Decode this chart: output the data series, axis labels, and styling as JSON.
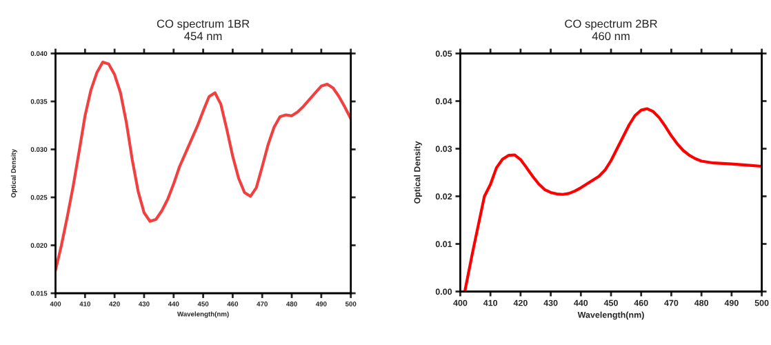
{
  "chart_data": [
    {
      "type": "line",
      "title": "CO spectrum 1BR\n454 nm",
      "xlabel": "Wavelength(nm)",
      "ylabel": "Optical Density",
      "xlim": [
        400,
        500
      ],
      "xticks": [
        400,
        410,
        420,
        430,
        440,
        450,
        460,
        470,
        480,
        490,
        500
      ],
      "ylim": [
        0.015,
        0.04
      ],
      "yticks": [
        {
          "value": 0.015,
          "label": "0.015"
        },
        {
          "value": 0.02,
          "label": "0.020"
        },
        {
          "value": 0.025,
          "label": "0.025"
        },
        {
          "value": 0.03,
          "label": "0.030"
        },
        {
          "value": 0.035,
          "label": "0.035"
        },
        {
          "value": 0.04,
          "label": "0.040"
        }
      ],
      "grid": false,
      "legend": false,
      "series": [
        {
          "color": "#f04040",
          "x": [
            400,
            402,
            404,
            406,
            408,
            410,
            412,
            414,
            416,
            418,
            420,
            422,
            424,
            426,
            428,
            430,
            432,
            434,
            436,
            438,
            440,
            442,
            444,
            446,
            448,
            450,
            452,
            454,
            456,
            458,
            460,
            462,
            464,
            466,
            468,
            470,
            472,
            474,
            476,
            478,
            480,
            482,
            484,
            486,
            488,
            490,
            492,
            494,
            496,
            498,
            500
          ],
          "values": [
            0.0174,
            0.02,
            0.023,
            0.0262,
            0.0298,
            0.0335,
            0.0362,
            0.038,
            0.0391,
            0.0389,
            0.0378,
            0.0359,
            0.0328,
            0.0289,
            0.0256,
            0.0234,
            0.0225,
            0.0227,
            0.0236,
            0.0248,
            0.0264,
            0.0282,
            0.0296,
            0.031,
            0.0324,
            0.034,
            0.0355,
            0.0359,
            0.0347,
            0.0321,
            0.0293,
            0.027,
            0.0255,
            0.0251,
            0.026,
            0.0282,
            0.0305,
            0.0323,
            0.0334,
            0.0336,
            0.0335,
            0.0339,
            0.0345,
            0.0352,
            0.0359,
            0.0366,
            0.0368,
            0.0364,
            0.0355,
            0.0344,
            0.0332
          ]
        }
      ]
    },
    {
      "type": "line",
      "title": "CO spectrum 2BR\n460 nm",
      "xlabel": "Wavelength(nm)",
      "ylabel": "Optical Density",
      "xlim": [
        400,
        500
      ],
      "xticks": [
        400,
        410,
        420,
        430,
        440,
        450,
        460,
        470,
        480,
        490,
        500
      ],
      "ylim": [
        0,
        0.05
      ],
      "yticks": [
        {
          "value": 0,
          "label": "0.00"
        },
        {
          "value": 0.01,
          "label": "0.01"
        },
        {
          "value": 0.02,
          "label": "0.02"
        },
        {
          "value": 0.03,
          "label": "0.03"
        },
        {
          "value": 0.04,
          "label": "0.04"
        },
        {
          "value": 0.05,
          "label": "0.05"
        }
      ],
      "grid": false,
      "legend": false,
      "series": [
        {
          "color": "#ff0000",
          "x": [
            401.5,
            404,
            406,
            408,
            410,
            412,
            414,
            416,
            418,
            420,
            422,
            424,
            426,
            428,
            430,
            432,
            434,
            436,
            438,
            440,
            442,
            444,
            446,
            448,
            450,
            452,
            454,
            456,
            458,
            460,
            462,
            464,
            466,
            468,
            470,
            472,
            474,
            476,
            478,
            480,
            484,
            490,
            496,
            500
          ],
          "values": [
            0.0,
            0.008,
            0.014,
            0.02,
            0.0225,
            0.026,
            0.0278,
            0.0286,
            0.0287,
            0.0277,
            0.026,
            0.0242,
            0.0226,
            0.0214,
            0.0208,
            0.0205,
            0.0204,
            0.0206,
            0.0211,
            0.0218,
            0.0226,
            0.0234,
            0.0242,
            0.0255,
            0.0275,
            0.03,
            0.0325,
            0.035,
            0.037,
            0.0381,
            0.0384,
            0.0378,
            0.0365,
            0.0347,
            0.0327,
            0.031,
            0.0296,
            0.0286,
            0.0279,
            0.0274,
            0.027,
            0.0268,
            0.0265,
            0.0263
          ]
        }
      ]
    }
  ]
}
